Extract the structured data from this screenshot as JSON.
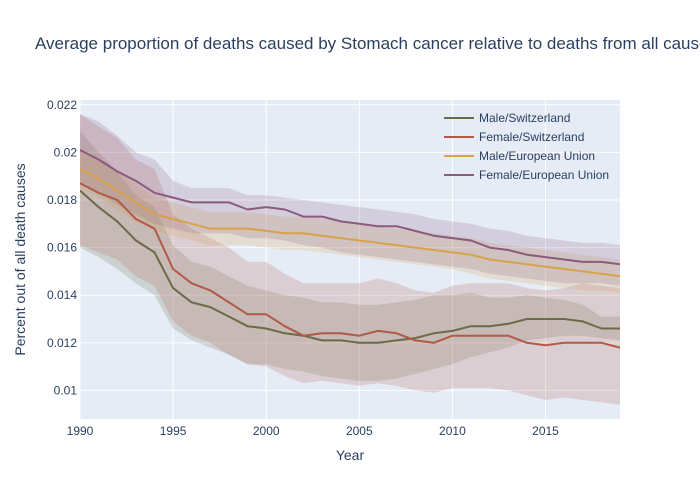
{
  "chart_data": {
    "type": "line",
    "title": "Average proportion of deaths caused by Stomach cancer relative to deaths from all causes",
    "xlabel": "Year",
    "ylabel": "Percent out of all death causes",
    "xlim": [
      1990,
      2019
    ],
    "ylim": [
      0.0088,
      0.0222
    ],
    "x_ticks": [
      1990,
      1995,
      2000,
      2005,
      2010,
      2015
    ],
    "x_tick_labels": [
      "1990",
      "1995",
      "2000",
      "2005",
      "2010",
      "2015"
    ],
    "y_ticks": [
      0.01,
      0.012,
      0.014,
      0.016,
      0.018,
      0.02,
      0.022
    ],
    "y_tick_labels": [
      "0.01",
      "0.012",
      "0.014",
      "0.016",
      "0.018",
      "0.02",
      "0.022"
    ],
    "grid": true,
    "legend_position": "top-right",
    "plot_background": "#e5ecf6",
    "x": [
      1990,
      1991,
      1992,
      1993,
      1994,
      1995,
      1996,
      1997,
      1998,
      1999,
      2000,
      2001,
      2002,
      2003,
      2004,
      2005,
      2006,
      2007,
      2008,
      2009,
      2010,
      2011,
      2012,
      2013,
      2014,
      2015,
      2016,
      2017,
      2018,
      2019
    ],
    "series": [
      {
        "name": "Male/Switzerland",
        "color": "#6b6b45",
        "values": [
          0.0184,
          0.0177,
          0.0171,
          0.0163,
          0.0158,
          0.0143,
          0.0137,
          0.0135,
          0.0131,
          0.0127,
          0.0126,
          0.0124,
          0.0123,
          0.0121,
          0.0121,
          0.012,
          0.012,
          0.0121,
          0.0122,
          0.0124,
          0.0125,
          0.0127,
          0.0127,
          0.0128,
          0.013,
          0.013,
          0.013,
          0.0129,
          0.0126,
          0.0126
        ],
        "lower": [
          0.016,
          0.0156,
          0.0151,
          0.0145,
          0.014,
          0.0126,
          0.0121,
          0.0118,
          0.0115,
          0.0111,
          0.0111,
          0.0109,
          0.0108,
          0.0106,
          0.0105,
          0.0104,
          0.0104,
          0.0105,
          0.0107,
          0.0109,
          0.0111,
          0.0114,
          0.0116,
          0.0118,
          0.0121,
          0.0122,
          0.0123,
          0.0123,
          0.0122,
          0.0121
        ],
        "upper": [
          0.0209,
          0.02,
          0.0192,
          0.0182,
          0.0177,
          0.0161,
          0.0154,
          0.0152,
          0.0148,
          0.0144,
          0.0142,
          0.014,
          0.0139,
          0.0137,
          0.0137,
          0.0136,
          0.0136,
          0.0137,
          0.0138,
          0.014,
          0.014,
          0.0141,
          0.0139,
          0.0139,
          0.014,
          0.0139,
          0.0138,
          0.0136,
          0.0131,
          0.0131
        ]
      },
      {
        "name": "Female/Switzerland",
        "color": "#b05a48",
        "values": [
          0.0187,
          0.0183,
          0.018,
          0.0172,
          0.0168,
          0.0151,
          0.0145,
          0.0142,
          0.0137,
          0.0132,
          0.0132,
          0.0127,
          0.0123,
          0.0124,
          0.0124,
          0.0123,
          0.0125,
          0.0124,
          0.0121,
          0.012,
          0.0123,
          0.0123,
          0.0123,
          0.0123,
          0.012,
          0.0119,
          0.012,
          0.012,
          0.012,
          0.0118
        ],
        "lower": [
          0.0161,
          0.0158,
          0.0155,
          0.0148,
          0.0144,
          0.0129,
          0.0123,
          0.012,
          0.0115,
          0.0111,
          0.011,
          0.0106,
          0.0103,
          0.0104,
          0.0103,
          0.0102,
          0.0103,
          0.0102,
          0.01,
          0.0099,
          0.0101,
          0.0101,
          0.0101,
          0.01,
          0.0098,
          0.0096,
          0.0097,
          0.0096,
          0.0095,
          0.0094
        ],
        "upper": [
          0.0216,
          0.0211,
          0.0206,
          0.0197,
          0.0193,
          0.0174,
          0.0168,
          0.0164,
          0.016,
          0.0154,
          0.0154,
          0.0149,
          0.0145,
          0.0145,
          0.0145,
          0.0145,
          0.0147,
          0.0145,
          0.0142,
          0.0141,
          0.0144,
          0.0145,
          0.0145,
          0.0145,
          0.0143,
          0.0142,
          0.0143,
          0.0145,
          0.0144,
          0.0143
        ]
      },
      {
        "name": "Male/European Union",
        "color": "#d9a24a",
        "values": [
          0.0193,
          0.0189,
          0.0184,
          0.0179,
          0.0174,
          0.0172,
          0.017,
          0.0168,
          0.0168,
          0.0168,
          0.0167,
          0.0166,
          0.0166,
          0.0165,
          0.0164,
          0.0163,
          0.0162,
          0.0161,
          0.016,
          0.0159,
          0.0158,
          0.0157,
          0.0155,
          0.0154,
          0.0153,
          0.0152,
          0.0151,
          0.015,
          0.0149,
          0.0148
        ],
        "lower": [
          0.0185,
          0.0181,
          0.0176,
          0.0171,
          0.0167,
          0.0165,
          0.0163,
          0.0161,
          0.0161,
          0.0161,
          0.016,
          0.0159,
          0.0159,
          0.0158,
          0.0157,
          0.0156,
          0.0155,
          0.0154,
          0.0153,
          0.0152,
          0.0151,
          0.0149,
          0.0147,
          0.0146,
          0.0145,
          0.0144,
          0.0143,
          0.0142,
          0.0142,
          0.0141
        ],
        "upper": [
          0.0201,
          0.0197,
          0.0192,
          0.0187,
          0.0181,
          0.0179,
          0.0177,
          0.0175,
          0.0175,
          0.0175,
          0.0174,
          0.0173,
          0.0173,
          0.0172,
          0.0171,
          0.017,
          0.0169,
          0.0168,
          0.0167,
          0.0166,
          0.0165,
          0.0164,
          0.0162,
          0.0161,
          0.016,
          0.0159,
          0.0158,
          0.0157,
          0.0156,
          0.0155
        ]
      },
      {
        "name": "Female/European Union",
        "color": "#8b5a7d",
        "values": [
          0.0201,
          0.0197,
          0.0192,
          0.0188,
          0.0183,
          0.0181,
          0.0179,
          0.0179,
          0.0179,
          0.0176,
          0.0177,
          0.0176,
          0.0173,
          0.0173,
          0.0171,
          0.017,
          0.0169,
          0.0169,
          0.0167,
          0.0165,
          0.0164,
          0.0163,
          0.016,
          0.0159,
          0.0157,
          0.0156,
          0.0155,
          0.0154,
          0.0154,
          0.0153
        ],
        "lower": [
          0.0187,
          0.0183,
          0.0178,
          0.0174,
          0.017,
          0.0168,
          0.0166,
          0.0166,
          0.0166,
          0.0164,
          0.0164,
          0.0163,
          0.0161,
          0.016,
          0.0158,
          0.0157,
          0.0156,
          0.0155,
          0.0154,
          0.0153,
          0.0152,
          0.0151,
          0.0149,
          0.0148,
          0.0147,
          0.0146,
          0.0145,
          0.0145,
          0.0145,
          0.0144
        ],
        "upper": [
          0.0216,
          0.0213,
          0.0207,
          0.02,
          0.0197,
          0.0188,
          0.0185,
          0.0185,
          0.0185,
          0.0182,
          0.0182,
          0.0181,
          0.018,
          0.0179,
          0.0178,
          0.0177,
          0.0176,
          0.0175,
          0.0174,
          0.0172,
          0.0171,
          0.017,
          0.0168,
          0.0167,
          0.0165,
          0.0164,
          0.0163,
          0.0162,
          0.0162,
          0.0161
        ]
      }
    ]
  }
}
